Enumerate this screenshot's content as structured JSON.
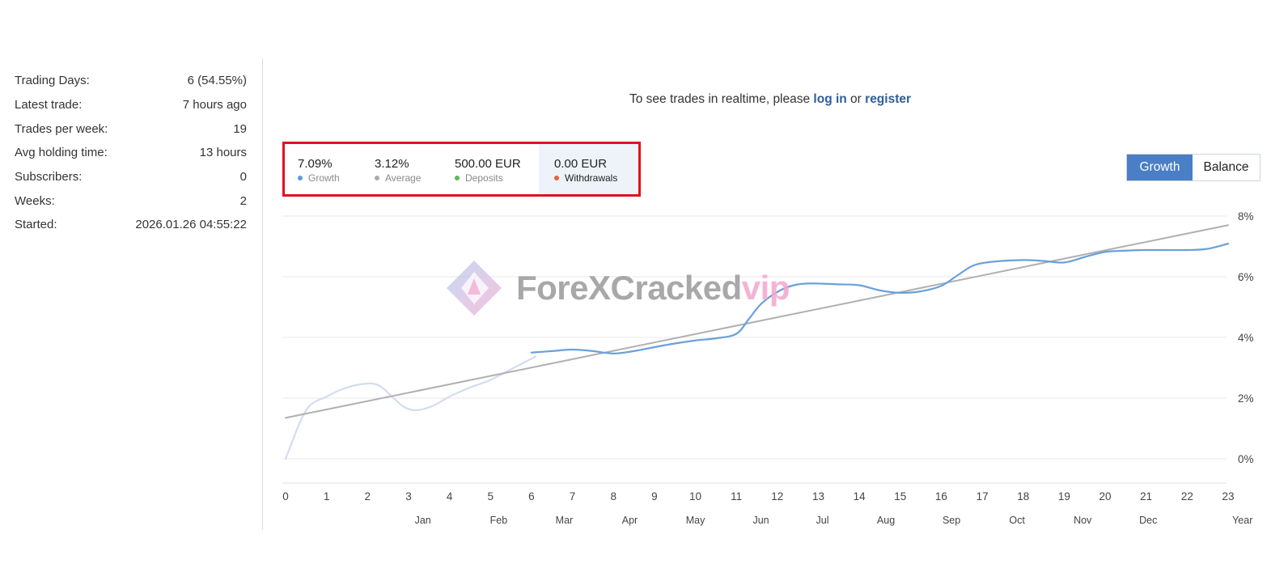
{
  "stats": [
    {
      "label": "Trading Days:",
      "value": "6 (54.55%)"
    },
    {
      "label": "Latest trade:",
      "value": "7 hours ago"
    },
    {
      "label": "Trades per week:",
      "value": "19"
    },
    {
      "label": "Avg holding time:",
      "value": "13 hours"
    },
    {
      "label": "Subscribers:",
      "value": "0"
    },
    {
      "label": "Weeks:",
      "value": "2"
    },
    {
      "label": "Started:",
      "value": "2026.01.26 04:55:22"
    }
  ],
  "notice": {
    "prefix": "To see trades in realtime, please ",
    "login_label": "log in",
    "middle": " or ",
    "register_label": "register"
  },
  "summary": {
    "growth": {
      "value": "7.09%",
      "label": "Growth",
      "color": "#5b9bd5"
    },
    "average": {
      "value": "3.12%",
      "label": "Average",
      "color": "#aaaaaa"
    },
    "deposits": {
      "value": "500.00 EUR",
      "label": "Deposits",
      "color": "#5cb85c"
    },
    "withdrawals": {
      "value": "0.00 EUR",
      "label": "Withdrawals",
      "color": "#e8603c"
    }
  },
  "toggle": {
    "growth_label": "Growth",
    "balance_label": "Balance"
  },
  "watermark": {
    "text_main": "ForeXCracked",
    "text_accent": "vip"
  },
  "chart_data": {
    "type": "line",
    "x_ticks": [
      "0",
      "1",
      "2",
      "3",
      "4",
      "5",
      "6",
      "7",
      "8",
      "9",
      "10",
      "11",
      "12",
      "13",
      "14",
      "15",
      "16",
      "17",
      "18",
      "19",
      "20",
      "21",
      "22",
      "23"
    ],
    "x_secondary_labels": [
      {
        "label": "Jan",
        "x": 3.35
      },
      {
        "label": "Feb",
        "x": 5.2
      },
      {
        "label": "Mar",
        "x": 6.8
      },
      {
        "label": "Apr",
        "x": 8.4
      },
      {
        "label": "May",
        "x": 10.0
      },
      {
        "label": "Jun",
        "x": 11.6
      },
      {
        "label": "Jul",
        "x": 13.1
      },
      {
        "label": "Aug",
        "x": 14.65
      },
      {
        "label": "Sep",
        "x": 16.25
      },
      {
        "label": "Oct",
        "x": 17.85
      },
      {
        "label": "Nov",
        "x": 19.45
      },
      {
        "label": "Dec",
        "x": 21.05
      },
      {
        "label": "Year",
        "x": 23.35
      }
    ],
    "y_ticks": [
      "0%",
      "2%",
      "4%",
      "6%",
      "8%"
    ],
    "ylim": [
      0,
      8
    ],
    "xlim": [
      0,
      23
    ],
    "grid": true,
    "series": [
      {
        "role": "growth_faded",
        "color": "#d3dcf2",
        "points": [
          [
            0,
            0
          ],
          [
            0.5,
            1.6
          ],
          [
            1,
            2.05
          ],
          [
            1.5,
            2.35
          ],
          [
            2,
            2.48
          ],
          [
            2.3,
            2.4
          ],
          [
            2.6,
            2.05
          ],
          [
            2.9,
            1.7
          ],
          [
            3.2,
            1.6
          ],
          [
            3.6,
            1.75
          ],
          [
            4,
            2.05
          ],
          [
            4.5,
            2.35
          ],
          [
            5,
            2.6
          ],
          [
            5.5,
            2.95
          ],
          [
            6,
            3.3
          ],
          [
            6.1,
            3.37
          ]
        ]
      },
      {
        "role": "growth",
        "color": "#6aa0dc",
        "points": [
          [
            6,
            3.5
          ],
          [
            6.5,
            3.55
          ],
          [
            7,
            3.6
          ],
          [
            7.5,
            3.55
          ],
          [
            8,
            3.47
          ],
          [
            8.5,
            3.55
          ],
          [
            9,
            3.68
          ],
          [
            9.5,
            3.8
          ],
          [
            10,
            3.9
          ],
          [
            10.5,
            3.97
          ],
          [
            11,
            4.12
          ],
          [
            11.3,
            4.6
          ],
          [
            11.6,
            5.1
          ],
          [
            12,
            5.5
          ],
          [
            12.4,
            5.72
          ],
          [
            12.8,
            5.78
          ],
          [
            13.5,
            5.75
          ],
          [
            14,
            5.72
          ],
          [
            14.5,
            5.55
          ],
          [
            15,
            5.47
          ],
          [
            15.5,
            5.52
          ],
          [
            16,
            5.7
          ],
          [
            16.4,
            6.05
          ],
          [
            16.8,
            6.38
          ],
          [
            17.3,
            6.5
          ],
          [
            18,
            6.55
          ],
          [
            18.5,
            6.52
          ],
          [
            19,
            6.47
          ],
          [
            19.5,
            6.65
          ],
          [
            20,
            6.82
          ],
          [
            20.5,
            6.86
          ],
          [
            21,
            6.88
          ],
          [
            22,
            6.88
          ],
          [
            22.5,
            6.92
          ],
          [
            23,
            7.09
          ]
        ]
      },
      {
        "role": "average",
        "color": "#b0b0b0",
        "points": [
          [
            0,
            1.35
          ],
          [
            23,
            7.7
          ]
        ]
      }
    ]
  }
}
